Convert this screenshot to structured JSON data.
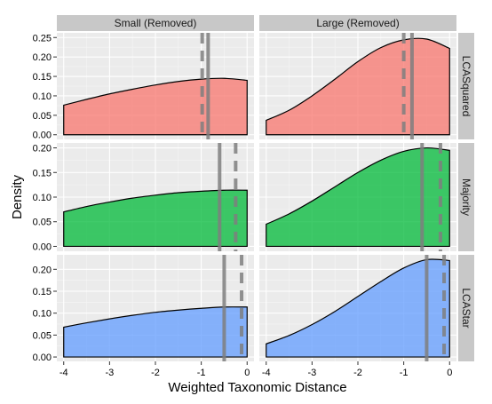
{
  "chart_data": {
    "type": "area",
    "facet_columns": [
      "Small (Removed)",
      "Large (Removed)"
    ],
    "facet_rows": [
      "LCASquared",
      "Majority",
      "LCAStar"
    ],
    "xlabel": "Weighted Taxonomic Distance",
    "ylabel": "Density",
    "xlim": [
      -4.15,
      0.15
    ],
    "x_ticks": [
      -4,
      -3,
      -2,
      -1,
      0
    ],
    "x_tick_labels": [
      "-4",
      "-3",
      "-2",
      "-1",
      "0"
    ],
    "row_scales": [
      {
        "ylim": [
          -0.012,
          0.262
        ],
        "ticks": [
          0,
          0.05,
          0.1,
          0.15,
          0.2,
          0.25
        ],
        "tick_labels": [
          "0.00",
          "0.05",
          "0.10",
          "0.15",
          "0.20",
          "0.25"
        ]
      },
      {
        "ylim": [
          -0.01,
          0.21
        ],
        "ticks": [
          0,
          0.05,
          0.1,
          0.15,
          0.2
        ],
        "tick_labels": [
          "0.00",
          "0.05",
          "0.10",
          "0.15",
          "0.20"
        ]
      },
      {
        "ylim": [
          -0.01,
          0.233
        ],
        "ticks": [
          0,
          0.05,
          0.1,
          0.15,
          0.2
        ],
        "tick_labels": [
          "0.00",
          "0.05",
          "0.10",
          "0.15",
          "0.20"
        ]
      }
    ],
    "grid": true,
    "legend": "none",
    "row_colors": [
      "#F8766D",
      "#00BA38",
      "#619CFF"
    ],
    "panels": [
      {
        "row": 0,
        "col": 0,
        "x": [
          -4,
          -3.5,
          -3,
          -2.5,
          -2,
          -1.5,
          -1,
          -0.5,
          0
        ],
        "y": [
          0.076,
          0.091,
          0.105,
          0.117,
          0.128,
          0.137,
          0.143,
          0.145,
          0.14
        ],
        "solid_x": -0.85,
        "dashed_x": -0.98
      },
      {
        "row": 0,
        "col": 1,
        "x": [
          -4,
          -3.5,
          -3,
          -2.5,
          -2,
          -1.5,
          -1,
          -0.5,
          0
        ],
        "y": [
          0.037,
          0.063,
          0.1,
          0.143,
          0.188,
          0.224,
          0.244,
          0.246,
          0.222
        ],
        "solid_x": -0.82,
        "dashed_x": -1.0
      },
      {
        "row": 1,
        "col": 0,
        "x": [
          -4,
          -3.5,
          -3,
          -2.5,
          -2,
          -1.5,
          -1,
          -0.5,
          0
        ],
        "y": [
          0.07,
          0.081,
          0.09,
          0.098,
          0.104,
          0.109,
          0.112,
          0.114,
          0.114
        ],
        "solid_x": -0.6,
        "dashed_x": -0.25
      },
      {
        "row": 1,
        "col": 1,
        "x": [
          -4,
          -3.5,
          -3,
          -2.5,
          -2,
          -1.5,
          -1,
          -0.5,
          0
        ],
        "y": [
          0.045,
          0.066,
          0.092,
          0.121,
          0.15,
          0.175,
          0.193,
          0.2,
          0.195
        ],
        "solid_x": -0.6,
        "dashed_x": -0.2
      },
      {
        "row": 2,
        "col": 0,
        "x": [
          -4,
          -3.5,
          -3,
          -2.5,
          -2,
          -1.5,
          -1,
          -0.5,
          0
        ],
        "y": [
          0.068,
          0.078,
          0.087,
          0.095,
          0.102,
          0.107,
          0.111,
          0.114,
          0.114
        ],
        "solid_x": -0.5,
        "dashed_x": -0.12
      },
      {
        "row": 2,
        "col": 1,
        "x": [
          -4,
          -3.5,
          -3,
          -2.5,
          -2,
          -1.5,
          -1,
          -0.5,
          0
        ],
        "y": [
          0.03,
          0.049,
          0.074,
          0.104,
          0.138,
          0.172,
          0.203,
          0.222,
          0.22
        ],
        "solid_x": -0.5,
        "dashed_x": -0.12
      }
    ]
  }
}
